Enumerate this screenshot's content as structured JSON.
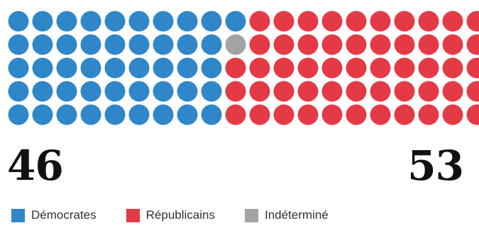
{
  "chart_data": {
    "type": "seat-chart",
    "layout": {
      "rows": 5,
      "columns": 20
    },
    "series": [
      {
        "name": "Démocrates",
        "value": 46,
        "color": "#2f86c8"
      },
      {
        "name": "Indéterminé",
        "value": 1,
        "color": "#a3a3a3"
      },
      {
        "name": "Républicains",
        "value": 53,
        "color": "#e43a45"
      }
    ],
    "totals": {
      "left": "46",
      "right": "53"
    }
  },
  "legend": [
    {
      "label": "Démocrates",
      "color": "#2f86c8"
    },
    {
      "label": "Républicains",
      "color": "#e43a45"
    },
    {
      "label": "Indéterminé",
      "color": "#a3a3a3"
    }
  ]
}
